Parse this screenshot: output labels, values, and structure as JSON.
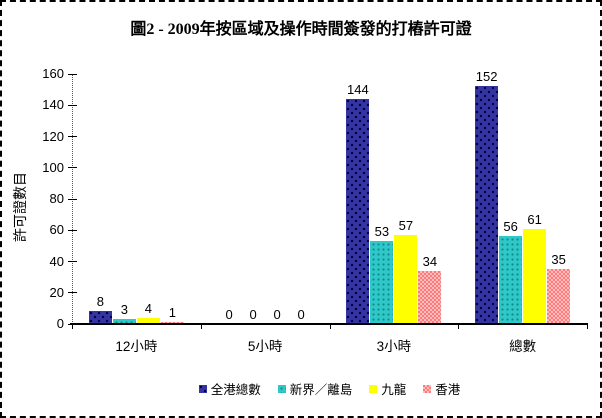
{
  "title": "圖2 - 2009年按區域及操作時間簽發的打樁許可證",
  "chart_data": {
    "type": "bar",
    "title": "圖2 - 2009年按區域及操作時間簽發的打樁許可證",
    "categories": [
      "12小時",
      "5小時",
      "3小時",
      "總數"
    ],
    "series": [
      {
        "name": "全港總數",
        "color": "#3434A3",
        "values": [
          8,
          0,
          144,
          152
        ]
      },
      {
        "name": "新界／離島",
        "color": "#2FC8C9",
        "values": [
          3,
          0,
          53,
          56
        ]
      },
      {
        "name": "九龍",
        "color": "#FFFF00",
        "values": [
          4,
          0,
          57,
          61
        ]
      },
      {
        "name": "香港",
        "color": "#FF7A7A",
        "values": [
          1,
          0,
          34,
          35
        ]
      }
    ],
    "xlabel": "",
    "ylabel": "許可證數目",
    "ylim": [
      0,
      160
    ],
    "ytick_step": 20,
    "grid": false,
    "legend_position": "bottom",
    "data_labels": true,
    "border_style": "dashed"
  }
}
